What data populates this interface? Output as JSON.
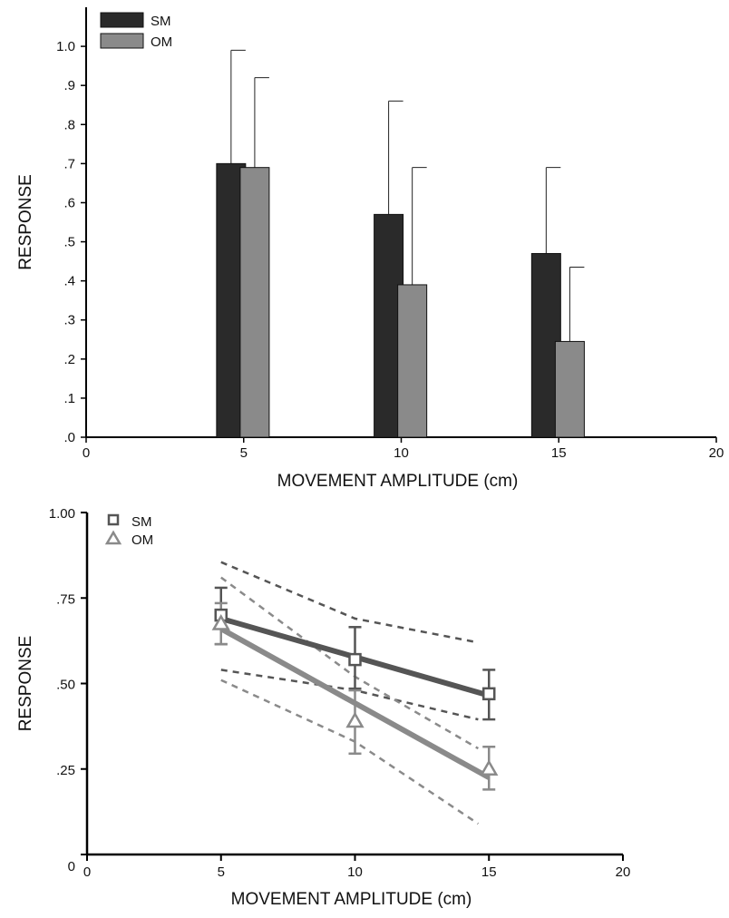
{
  "chart_data": [
    {
      "type": "bar",
      "xlabel": "MOVEMENT AMPLITUDE (cm)",
      "ylabel": "RESPONSE",
      "xlim": [
        0,
        20
      ],
      "ylim": [
        0,
        1.1
      ],
      "x_ticks": [
        0,
        5,
        10,
        15,
        20
      ],
      "x_tick_labels": [
        "0",
        "5",
        "10",
        "15",
        "20"
      ],
      "y_ticks": [
        0,
        0.1,
        0.2,
        0.3,
        0.4,
        0.5,
        0.6,
        0.7,
        0.8,
        0.9,
        1.0
      ],
      "y_tick_labels": [
        ".0",
        ".1",
        ".2",
        ".3",
        ".4",
        ".5",
        ".6",
        ".7",
        ".8",
        ".9",
        "1.0"
      ],
      "legend_position": "top-left",
      "grid": false,
      "x": [
        5,
        10,
        15
      ],
      "series": [
        {
          "name": "SM",
          "color": "#2a2a2a",
          "values": [
            0.7,
            0.57,
            0.47
          ],
          "error_upper": [
            0.99,
            0.86,
            0.69
          ]
        },
        {
          "name": "OM",
          "color": "#8a8a8a",
          "values": [
            0.69,
            0.39,
            0.245
          ],
          "error_upper": [
            0.92,
            0.69,
            0.435
          ]
        }
      ]
    },
    {
      "type": "line",
      "xlabel": "MOVEMENT AMPLITUDE (cm)",
      "ylabel": "RESPONSE",
      "xlim": [
        0,
        20
      ],
      "ylim": [
        0,
        1.0
      ],
      "x_ticks": [
        0,
        5,
        10,
        15,
        20
      ],
      "x_tick_labels": [
        "0",
        "5",
        "10",
        "15",
        "20"
      ],
      "y_ticks": [
        0,
        0.25,
        0.5,
        0.75,
        1.0
      ],
      "y_tick_labels": [
        "0",
        ".25",
        ".50",
        ".75",
        "1.00"
      ],
      "legend_position": "top-left",
      "grid": false,
      "series": [
        {
          "name": "SM",
          "marker": "square",
          "color": "#555555",
          "points": {
            "x": [
              5,
              10,
              15
            ],
            "y": [
              0.7,
              0.57,
              0.47
            ],
            "err_low": [
              0.615,
              0.485,
              0.395
            ],
            "err_high": [
              0.78,
              0.665,
              0.54
            ]
          },
          "fit": {
            "x": [
              5,
              15
            ],
            "y": [
              0.69,
              0.465
            ]
          },
          "ci_upper": {
            "x": [
              5,
              10,
              14.6
            ],
            "y": [
              0.855,
              0.69,
              0.62
            ]
          },
          "ci_lower": {
            "x": [
              5,
              10,
              14.6
            ],
            "y": [
              0.54,
              0.48,
              0.395
            ]
          }
        },
        {
          "name": "OM",
          "marker": "triangle",
          "color": "#8a8a8a",
          "points": {
            "x": [
              5,
              10,
              15
            ],
            "y": [
              0.675,
              0.39,
              0.25
            ],
            "err_low": [
              0.615,
              0.295,
              0.19
            ],
            "err_high": [
              0.735,
              0.48,
              0.315
            ]
          },
          "fit": {
            "x": [
              5,
              15
            ],
            "y": [
              0.66,
              0.225
            ]
          },
          "ci_upper": {
            "x": [
              5,
              10,
              14.6
            ],
            "y": [
              0.81,
              0.52,
              0.31
            ]
          },
          "ci_lower": {
            "x": [
              5,
              10,
              14.6
            ],
            "y": [
              0.51,
              0.33,
              0.09
            ]
          }
        }
      ]
    }
  ]
}
